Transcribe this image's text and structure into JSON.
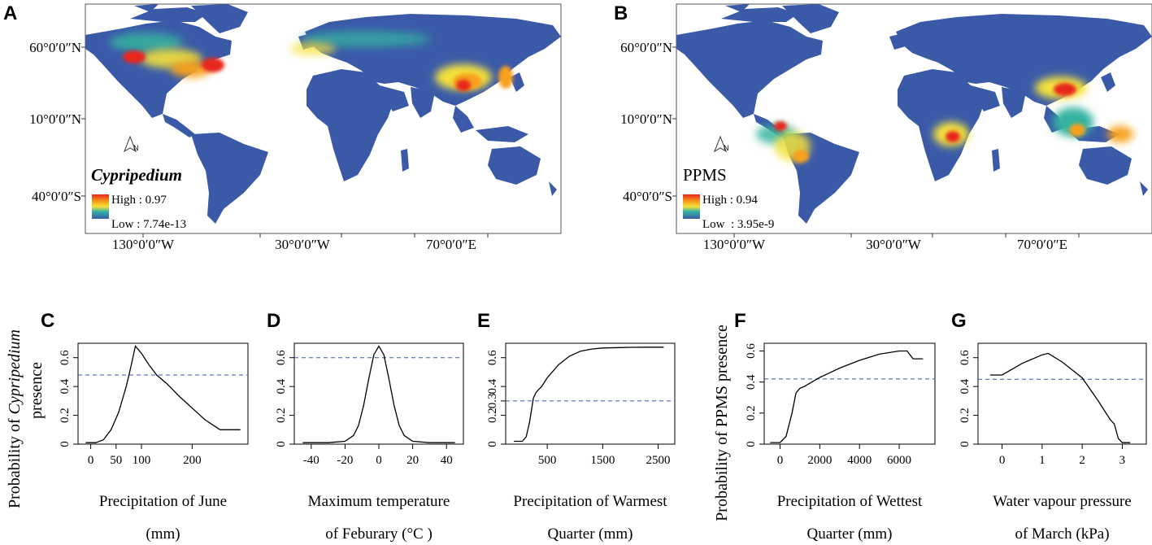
{
  "colors": {
    "land": "#3a5aa8",
    "ocean": "#ffffff",
    "hot_high": "#e8261c",
    "hot_mid": "#f7a11a",
    "hot_low": "#f4e23a",
    "cool": "#36b3a0",
    "threshold": "#3a5aa8",
    "curve": "#000000"
  },
  "maps": [
    {
      "panel_label": "A",
      "species_label": "Cypripedium",
      "legend_high": "High : 0.97",
      "legend_low": "Low : 7.74e-13",
      "north_label": "N",
      "lat_labels": [
        "60°0′0″N",
        "10°0′0″N",
        "40°0′0″S"
      ],
      "lon_labels": [
        "130°0′0″W",
        "30°0′0″W",
        "70°0′0″E"
      ]
    },
    {
      "panel_label": "B",
      "species_label": "PPMS",
      "legend_high": "High : 0.94",
      "legend_low": "Low  : 3.95e-9",
      "north_label": "N",
      "lat_labels": [
        "60°0′0″N",
        "10°0′0″N",
        "40°0′0″S"
      ],
      "lon_labels": [
        "130°0′0″W",
        "30°0′0″W",
        "70°0′0″E"
      ]
    }
  ],
  "ylabel_left": {
    "prefix": "Probability of ",
    "italic": "Cypripedium",
    "line2": "presence"
  },
  "ylabel_right": "Probability of PPMS presence",
  "chart_data": [
    {
      "panel_label": "C",
      "type": "line",
      "xlabel_line1": "Precipitation of June",
      "xlabel_line2": "(mm)",
      "xlim": [
        -25,
        310
      ],
      "ylim": [
        0,
        0.7
      ],
      "xticks": [
        0,
        50,
        100,
        200
      ],
      "xtick_labels": [
        "0",
        "50",
        "100",
        "200"
      ],
      "yticks": [
        0,
        0.2,
        0.4,
        0.6
      ],
      "ytick_labels": [
        "0",
        "0.2",
        "0.4",
        "0.6"
      ],
      "threshold": 0.48,
      "x": [
        -10,
        10,
        25,
        40,
        55,
        70,
        80,
        88,
        100,
        115,
        130,
        150,
        175,
        200,
        225,
        255,
        280,
        295
      ],
      "y": [
        0.01,
        0.01,
        0.03,
        0.1,
        0.22,
        0.4,
        0.55,
        0.68,
        0.63,
        0.55,
        0.48,
        0.42,
        0.33,
        0.25,
        0.17,
        0.1,
        0.1,
        0.1
      ]
    },
    {
      "panel_label": "D",
      "type": "line",
      "xlabel_line1": "Maximum temperature",
      "xlabel_line2": "of Feburary (°C )",
      "xlim": [
        -50,
        50
      ],
      "ylim": [
        0,
        0.7
      ],
      "xticks": [
        -40,
        -20,
        0,
        20,
        40
      ],
      "xtick_labels": [
        "-40",
        "-20",
        "0",
        "20",
        "40"
      ],
      "yticks": [
        0,
        0.2,
        0.4,
        0.6
      ],
      "ytick_labels": [
        "0",
        "0.2",
        "0.4",
        "0.6"
      ],
      "threshold": 0.6,
      "x": [
        -45,
        -30,
        -20,
        -15,
        -12,
        -9,
        -6,
        -3,
        0,
        3,
        6,
        9,
        12,
        15,
        20,
        30,
        45
      ],
      "y": [
        0.01,
        0.01,
        0.02,
        0.06,
        0.13,
        0.27,
        0.45,
        0.62,
        0.68,
        0.62,
        0.45,
        0.27,
        0.13,
        0.06,
        0.02,
        0.01,
        0.01
      ]
    },
    {
      "panel_label": "E",
      "type": "line",
      "xlabel_line1": "Precipitation of Warmest",
      "xlabel_line2": "Quarter (mm)",
      "xlim": [
        -250,
        2800
      ],
      "ylim": [
        0,
        0.7
      ],
      "xticks": [
        500,
        1500,
        2500
      ],
      "xtick_labels": [
        "500",
        "1500",
        "2500"
      ],
      "yticks": [
        0,
        0.2,
        0.3,
        0.4,
        0.6
      ],
      "ytick_labels": [
        "0",
        "0.2",
        "0.3",
        "0.4",
        "0.6"
      ],
      "threshold": 0.3,
      "x": [
        -100,
        50,
        120,
        180,
        250,
        300,
        400,
        500,
        700,
        900,
        1100,
        1300,
        1500,
        1800,
        2000,
        2300,
        2600
      ],
      "y": [
        0.02,
        0.02,
        0.05,
        0.15,
        0.32,
        0.36,
        0.4,
        0.46,
        0.55,
        0.61,
        0.645,
        0.66,
        0.667,
        0.67,
        0.672,
        0.673,
        0.673
      ]
    },
    {
      "panel_label": "F",
      "type": "line",
      "xlabel_line1": "Precipitation of Wettest",
      "xlabel_line2": "Quarter (mm)",
      "xlim": [
        -800,
        7800
      ],
      "ylim": [
        0,
        0.65
      ],
      "xticks": [
        0,
        2000,
        4000,
        6000
      ],
      "xtick_labels": [
        "0",
        "2000",
        "4000",
        "6000"
      ],
      "yticks": [
        0,
        0.2,
        0.4,
        0.6
      ],
      "ytick_labels": [
        "0",
        "0.2",
        "0.4",
        "0.6"
      ],
      "threshold": 0.42,
      "x": [
        -500,
        0,
        300,
        600,
        800,
        1000,
        1200,
        1600,
        2000,
        3000,
        4000,
        5000,
        6000,
        6400,
        6700,
        7200
      ],
      "y": [
        0.01,
        0.01,
        0.05,
        0.2,
        0.33,
        0.36,
        0.37,
        0.4,
        0.43,
        0.49,
        0.54,
        0.58,
        0.6,
        0.6,
        0.55,
        0.55
      ]
    },
    {
      "panel_label": "G",
      "type": "line",
      "xlabel_line1": "Water vapour pressure",
      "xlabel_line2": "of March (kPa)",
      "xlim": [
        -0.6,
        3.6
      ],
      "ylim": [
        0,
        0.7
      ],
      "xticks": [
        0,
        1,
        2,
        3
      ],
      "xtick_labels": [
        "0",
        "1",
        "2",
        "3"
      ],
      "yticks": [
        0,
        0.2,
        0.4,
        0.6
      ],
      "ytick_labels": [
        "0",
        "0.2",
        "0.4",
        "0.6"
      ],
      "threshold": 0.45,
      "x": [
        -0.3,
        0,
        0.5,
        1.0,
        1.15,
        1.5,
        2.0,
        2.4,
        2.7,
        2.8,
        2.9,
        3.0,
        3.2
      ],
      "y": [
        0.48,
        0.48,
        0.56,
        0.62,
        0.63,
        0.57,
        0.46,
        0.3,
        0.17,
        0.14,
        0.04,
        0.01,
        0.01
      ]
    }
  ]
}
